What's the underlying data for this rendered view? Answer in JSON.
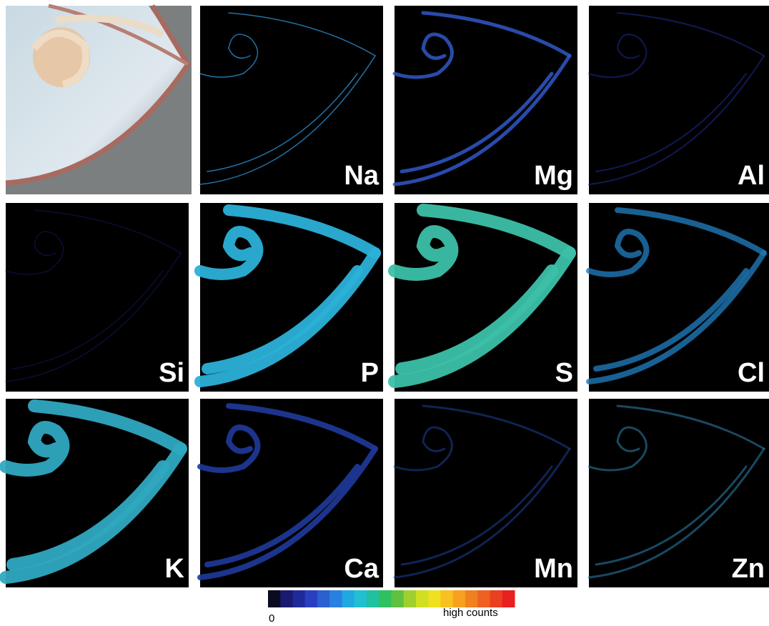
{
  "panels": [
    {
      "label": "Na"
    },
    {
      "label": "Mg"
    },
    {
      "label": "Al"
    },
    {
      "label": "Si"
    },
    {
      "label": "P"
    },
    {
      "label": "S"
    },
    {
      "label": "Cl"
    },
    {
      "label": "K"
    },
    {
      "label": "Ca"
    },
    {
      "label": "Mn"
    },
    {
      "label": "Zn"
    }
  ],
  "colorbar": {
    "min_label": "0",
    "max_label": "high counts"
  }
}
